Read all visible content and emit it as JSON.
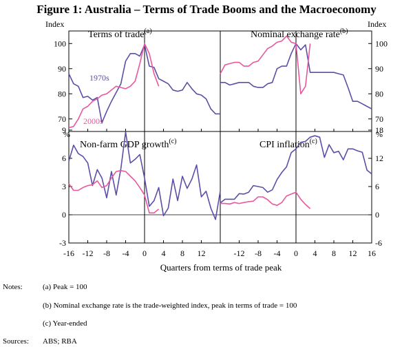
{
  "title": "Figure 1: Australia – Terms of Trade Booms and the Macroeconomy",
  "xlabel": "Quarters from terms of trade peak",
  "colors": {
    "s1970s": "#5b4ea6",
    "s2000s": "#e8579c",
    "axis": "#000000"
  },
  "top_units": {
    "left": "Index",
    "right": "Index"
  },
  "bottom_units": {
    "left": "%",
    "right": "%"
  },
  "notes_label": "Notes:",
  "notes": [
    "(a) Peak = 100",
    "(b) Nominal exchange rate is the trade-weighted index, peak in terms of trade = 100",
    "(c) Year-ended"
  ],
  "sources_label": "Sources:",
  "sources": "ABS; RBA",
  "chart_data": [
    {
      "type": "line",
      "title": "Terms of trade",
      "superscript": "(a)",
      "xlim": [
        -16,
        16
      ],
      "ylim": [
        65,
        105
      ],
      "yticks": [
        70,
        80,
        90,
        100
      ],
      "series": [
        {
          "name": "1970s",
          "x": [
            -16,
            -15,
            -14,
            -13,
            -12,
            -11,
            -10,
            -9,
            -8,
            -7,
            -6,
            -5,
            -4,
            -3,
            -2,
            -1,
            0,
            1,
            2,
            3,
            4,
            5,
            6,
            7,
            8,
            9,
            10,
            11,
            12,
            13,
            14,
            15,
            16
          ],
          "values": [
            88,
            84,
            83,
            78.5,
            79,
            77.5,
            78.5,
            68.5,
            73,
            77,
            80.5,
            84,
            93,
            96,
            96,
            95,
            99.5,
            91,
            90.5,
            86,
            85,
            84,
            81.5,
            81,
            81.5,
            84.5,
            82,
            80,
            79.5,
            78,
            74,
            72,
            72
          ]
        },
        {
          "name": "2000s",
          "x": [
            -16,
            -15,
            -14,
            -13,
            -12,
            -11,
            -10,
            -9,
            -8,
            -7,
            -6,
            -5,
            -4,
            -3,
            -2,
            -1,
            0,
            1,
            2,
            3
          ],
          "values": [
            66.5,
            67,
            70,
            74,
            75,
            77,
            78,
            79.5,
            80,
            81.5,
            83,
            82.5,
            82,
            83,
            85,
            92,
            100,
            96,
            88,
            83
          ]
        }
      ]
    },
    {
      "type": "line",
      "title": "Nominal exchange rate",
      "superscript": "(b)",
      "xlim": [
        -16,
        16
      ],
      "ylim": [
        65,
        105
      ],
      "yticks": [
        70,
        80,
        90,
        100
      ],
      "series": [
        {
          "name": "1970s",
          "x": [
            -16,
            -15,
            -14,
            -13,
            -12,
            -11,
            -10,
            -9,
            -8,
            -7,
            -6,
            -5,
            -4,
            -3,
            -2,
            -1,
            0,
            1,
            2,
            3,
            4,
            5,
            6,
            7,
            8,
            9,
            10,
            11,
            12,
            13,
            14,
            15,
            16
          ],
          "values": [
            84.5,
            84.5,
            83.5,
            84,
            84.5,
            84.5,
            84.5,
            83,
            82.5,
            82.5,
            84,
            84.5,
            90,
            91,
            91,
            96,
            100,
            97.5,
            99.5,
            88.5,
            88.5,
            88.5,
            88.5,
            88.5,
            88.5,
            88,
            87.5,
            82.5,
            77,
            77,
            76,
            75,
            74
          ]
        },
        {
          "name": "2000s",
          "x": [
            -16,
            -15,
            -14,
            -13,
            -12,
            -11,
            -10,
            -9,
            -8,
            -7,
            -6,
            -5,
            -4,
            -3,
            -2,
            -1,
            0,
            1,
            2,
            3
          ],
          "values": [
            88,
            91.5,
            92,
            92.5,
            92.5,
            91,
            91,
            92.5,
            93,
            95.5,
            98,
            99,
            100.5,
            101,
            103,
            100.5,
            100,
            80,
            83,
            100
          ]
        }
      ]
    },
    {
      "type": "line",
      "title": "Non-farm GDP growth",
      "superscript": "(c)",
      "xlim": [
        -16,
        16
      ],
      "ylim": [
        -3,
        9
      ],
      "yticks": [
        -3,
        0,
        3,
        6,
        9
      ],
      "series": [
        {
          "name": "1970s",
          "x": [
            -16,
            -15,
            -14,
            -13,
            -12,
            -11,
            -10,
            -9,
            -8,
            -7,
            -6,
            -5,
            -4,
            -3,
            -2,
            -1,
            0,
            1,
            2,
            3,
            4,
            5,
            6,
            7,
            8,
            9,
            10,
            11,
            12,
            13,
            14,
            15,
            16
          ],
          "values": [
            5.7,
            7.4,
            6.5,
            6.2,
            5.5,
            3.1,
            4.8,
            3.9,
            1.8,
            4.6,
            2.1,
            4.9,
            8.8,
            5.5,
            5.9,
            6.4,
            3.9,
            0.9,
            1.5,
            2.9,
            -0.1,
            0.7,
            3.8,
            1.5,
            4.1,
            2.8,
            3.8,
            5.3,
            1.9,
            2.5,
            0.7,
            -0.5,
            2.5
          ]
        },
        {
          "name": "2000s",
          "x": [
            -16,
            -15,
            -14,
            -13,
            -12,
            -11,
            -10,
            -9,
            -8,
            -7,
            -6,
            -5,
            -4,
            -3,
            -2,
            -1,
            0,
            1,
            2,
            3
          ],
          "values": [
            3.3,
            2.6,
            2.6,
            2.9,
            3.1,
            3.2,
            3.6,
            2.9,
            3.1,
            3.9,
            4.6,
            4.7,
            4.6,
            4.1,
            3.6,
            2.9,
            2.1,
            0.2,
            0.2,
            0.6
          ]
        }
      ]
    },
    {
      "type": "line",
      "title": "CPI inflation",
      "superscript": "(c)",
      "xlim": [
        -16,
        16
      ],
      "ylim": [
        -6,
        18
      ],
      "yticks": [
        -6,
        0,
        6,
        12,
        18
      ],
      "series": [
        {
          "name": "1970s",
          "x": [
            -16,
            -15,
            -14,
            -13,
            -12,
            -11,
            -10,
            -9,
            -8,
            -7,
            -6,
            -5,
            -4,
            -3,
            -2,
            -1,
            0,
            1,
            2,
            3,
            4,
            5,
            6,
            7,
            8,
            9,
            10,
            11,
            12,
            13,
            14,
            15,
            16
          ],
          "values": [
            2.5,
            3.3,
            3.3,
            3.3,
            4.5,
            4.4,
            4.8,
            6.2,
            6.0,
            5.8,
            4.8,
            5.3,
            7.5,
            9.0,
            10.2,
            13.2,
            14.0,
            15.4,
            15.6,
            16.5,
            16.8,
            16.5,
            12.2,
            14.9,
            13.2,
            13.5,
            11.7,
            14.0,
            14.0,
            13.6,
            13.3,
            9.5,
            8.7
          ]
        },
        {
          "name": "2000s",
          "x": [
            -16,
            -15,
            -14,
            -13,
            -12,
            -11,
            -10,
            -9,
            -8,
            -7,
            -6,
            -5,
            -4,
            -3,
            -2,
            -1,
            0,
            1,
            2,
            3
          ],
          "values": [
            2.4,
            2.4,
            2.3,
            2.6,
            2.4,
            2.6,
            2.8,
            2.9,
            3.8,
            3.8,
            3.2,
            2.3,
            2.0,
            2.6,
            4.0,
            4.4,
            4.8,
            3.3,
            2.2,
            1.3
          ]
        }
      ]
    }
  ],
  "series_labels": {
    "s1970s": "1970s",
    "s2000s": "2000s"
  },
  "x_tick_labels_left": [
    "-16",
    "-12",
    "-8",
    "-4",
    "0",
    "4",
    "8",
    "12"
  ],
  "x_tick_labels_right": [
    "-12",
    "-8",
    "-4",
    "0",
    "4",
    "8",
    "12",
    "16"
  ]
}
